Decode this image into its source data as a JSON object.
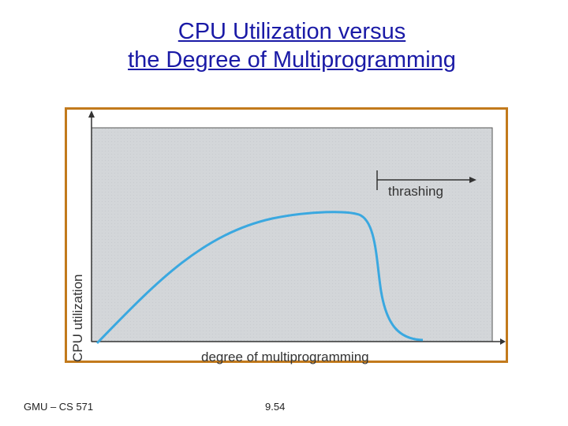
{
  "slide": {
    "title_line1": "CPU Utilization versus",
    "title_line2": "the Degree of Multiprogramming",
    "footer_left": "GMU – CS 571",
    "footer_center": "9.54"
  },
  "figure": {
    "y_axis_label": "CPU utilization",
    "x_axis_label": "degree of multiprogramming",
    "annotation_label": "thrashing"
  },
  "colors": {
    "title": "#1a1aa6",
    "frame": "#c27a1c",
    "plot_background": "#d3d6d9",
    "curve": "#3aa8e0",
    "axis": "#333333"
  }
}
